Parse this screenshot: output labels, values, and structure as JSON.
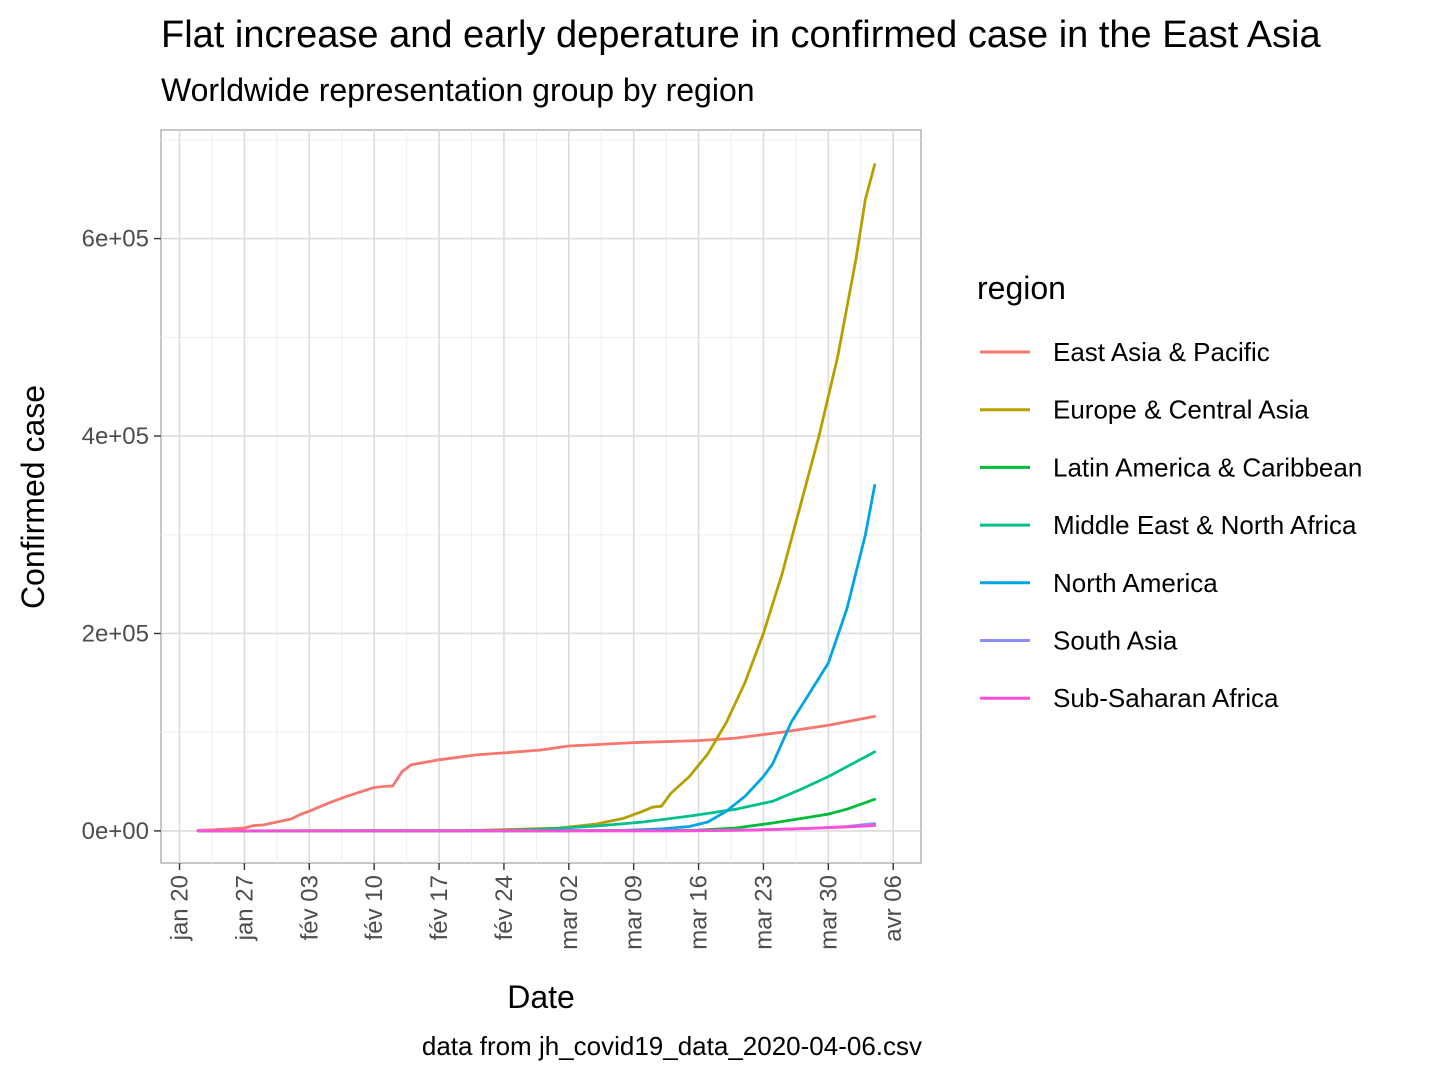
{
  "chart_data": {
    "type": "line",
    "title": "Flat increase and early deperature in confirmed case in the East Asia",
    "subtitle": "Worldwide representation group by region",
    "xlabel": "Date",
    "ylabel": "Confirmed case",
    "caption": "data from jh_covid19_data_2020-04-06.csv",
    "legend_title": "region",
    "legend_position": "right",
    "grid": true,
    "x_ticks": [
      "2020-01-20",
      "2020-01-27",
      "2020-02-03",
      "2020-02-10",
      "2020-02-17",
      "2020-02-24",
      "2020-03-02",
      "2020-03-09",
      "2020-03-16",
      "2020-03-23",
      "2020-03-30",
      "2020-04-06"
    ],
    "x_tick_labels": [
      "jan 20",
      "jan 27",
      "fév 03",
      "fév 10",
      "fév 17",
      "fév 24",
      "mar 02",
      "mar 09",
      "mar 16",
      "mar 23",
      "mar 30",
      "avr 06"
    ],
    "xlim": [
      "2020-01-18",
      "2020-04-09"
    ],
    "y_ticks": [
      0,
      200000,
      400000,
      600000
    ],
    "y_tick_labels": [
      "0e+00",
      "2e+05",
      "4e+05",
      "6e+05"
    ],
    "ylim": [
      -32500,
      710000
    ],
    "series": [
      {
        "name": "East Asia & Pacific",
        "color": "#F8766D",
        "x": [
          "2020-01-22",
          "2020-01-24",
          "2020-01-27",
          "2020-01-28",
          "2020-01-29",
          "2020-01-30",
          "2020-01-31",
          "2020-02-01",
          "2020-02-02",
          "2020-02-03",
          "2020-02-05",
          "2020-02-07",
          "2020-02-09",
          "2020-02-10",
          "2020-02-11",
          "2020-02-12",
          "2020-02-13",
          "2020-02-14",
          "2020-02-17",
          "2020-02-21",
          "2020-02-24",
          "2020-02-28",
          "2020-03-02",
          "2020-03-09",
          "2020-03-16",
          "2020-03-20",
          "2020-03-25",
          "2020-03-30",
          "2020-04-04"
        ],
        "y": [
          500,
          1200,
          3000,
          5500,
          6000,
          8000,
          10000,
          12000,
          16500,
          20000,
          28000,
          35000,
          41000,
          44000,
          45000,
          45500,
          60000,
          67000,
          72000,
          77000,
          79000,
          82000,
          86000,
          89500,
          91500,
          94000,
          100000,
          107000,
          116000
        ]
      },
      {
        "name": "Europe & Central Asia",
        "color": "#B79F00",
        "x": [
          "2020-01-22",
          "2020-02-20",
          "2020-02-25",
          "2020-03-01",
          "2020-03-05",
          "2020-03-08",
          "2020-03-10",
          "2020-03-11",
          "2020-03-12",
          "2020-03-13",
          "2020-03-15",
          "2020-03-17",
          "2020-03-19",
          "2020-03-21",
          "2020-03-23",
          "2020-03-25",
          "2020-03-27",
          "2020-03-29",
          "2020-03-31",
          "2020-04-02",
          "2020-04-03",
          "2020-04-04"
        ],
        "y": [
          0,
          200,
          1500,
          3000,
          7000,
          13000,
          20000,
          24000,
          25000,
          38000,
          55000,
          78000,
          110000,
          150000,
          200000,
          260000,
          330000,
          400000,
          480000,
          580000,
          640000,
          675000
        ]
      },
      {
        "name": "Latin America & Caribbean",
        "color": "#00BA38",
        "x": [
          "2020-01-22",
          "2020-03-12",
          "2020-03-16",
          "2020-03-20",
          "2020-03-24",
          "2020-03-28",
          "2020-03-30",
          "2020-04-01",
          "2020-04-04"
        ],
        "y": [
          0,
          200,
          800,
          3000,
          8000,
          14000,
          17000,
          22000,
          32000
        ]
      },
      {
        "name": "Middle East & North Africa",
        "color": "#00C08B",
        "x": [
          "2020-01-22",
          "2020-02-24",
          "2020-02-29",
          "2020-03-05",
          "2020-03-10",
          "2020-03-15",
          "2020-03-20",
          "2020-03-24",
          "2020-03-27",
          "2020-03-30",
          "2020-04-01",
          "2020-04-04"
        ],
        "y": [
          0,
          400,
          2000,
          5000,
          9000,
          15000,
          22000,
          30000,
          42000,
          55000,
          65000,
          80000
        ]
      },
      {
        "name": "North America",
        "color": "#00A5E3",
        "x": [
          "2020-01-22",
          "2020-03-01",
          "2020-03-08",
          "2020-03-12",
          "2020-03-15",
          "2020-03-17",
          "2020-03-19",
          "2020-03-21",
          "2020-03-23",
          "2020-03-24",
          "2020-03-26",
          "2020-03-28",
          "2020-03-30",
          "2020-04-01",
          "2020-04-03",
          "2020-04-04"
        ],
        "y": [
          0,
          100,
          500,
          2000,
          4500,
          9000,
          20000,
          35000,
          55000,
          68000,
          110000,
          140000,
          170000,
          225000,
          300000,
          350000
        ]
      },
      {
        "name": "South Asia",
        "color": "#8C8CFF",
        "x": [
          "2020-01-22",
          "2020-03-15",
          "2020-03-22",
          "2020-03-28",
          "2020-04-01",
          "2020-04-04"
        ],
        "y": [
          0,
          200,
          1000,
          2500,
          4500,
          7500
        ]
      },
      {
        "name": "Sub-Saharan Africa",
        "color": "#FF4FD8",
        "x": [
          "2020-01-22",
          "2020-03-15",
          "2020-03-22",
          "2020-03-28",
          "2020-04-01",
          "2020-04-04"
        ],
        "y": [
          0,
          150,
          800,
          2500,
          4000,
          5500
        ]
      }
    ]
  }
}
